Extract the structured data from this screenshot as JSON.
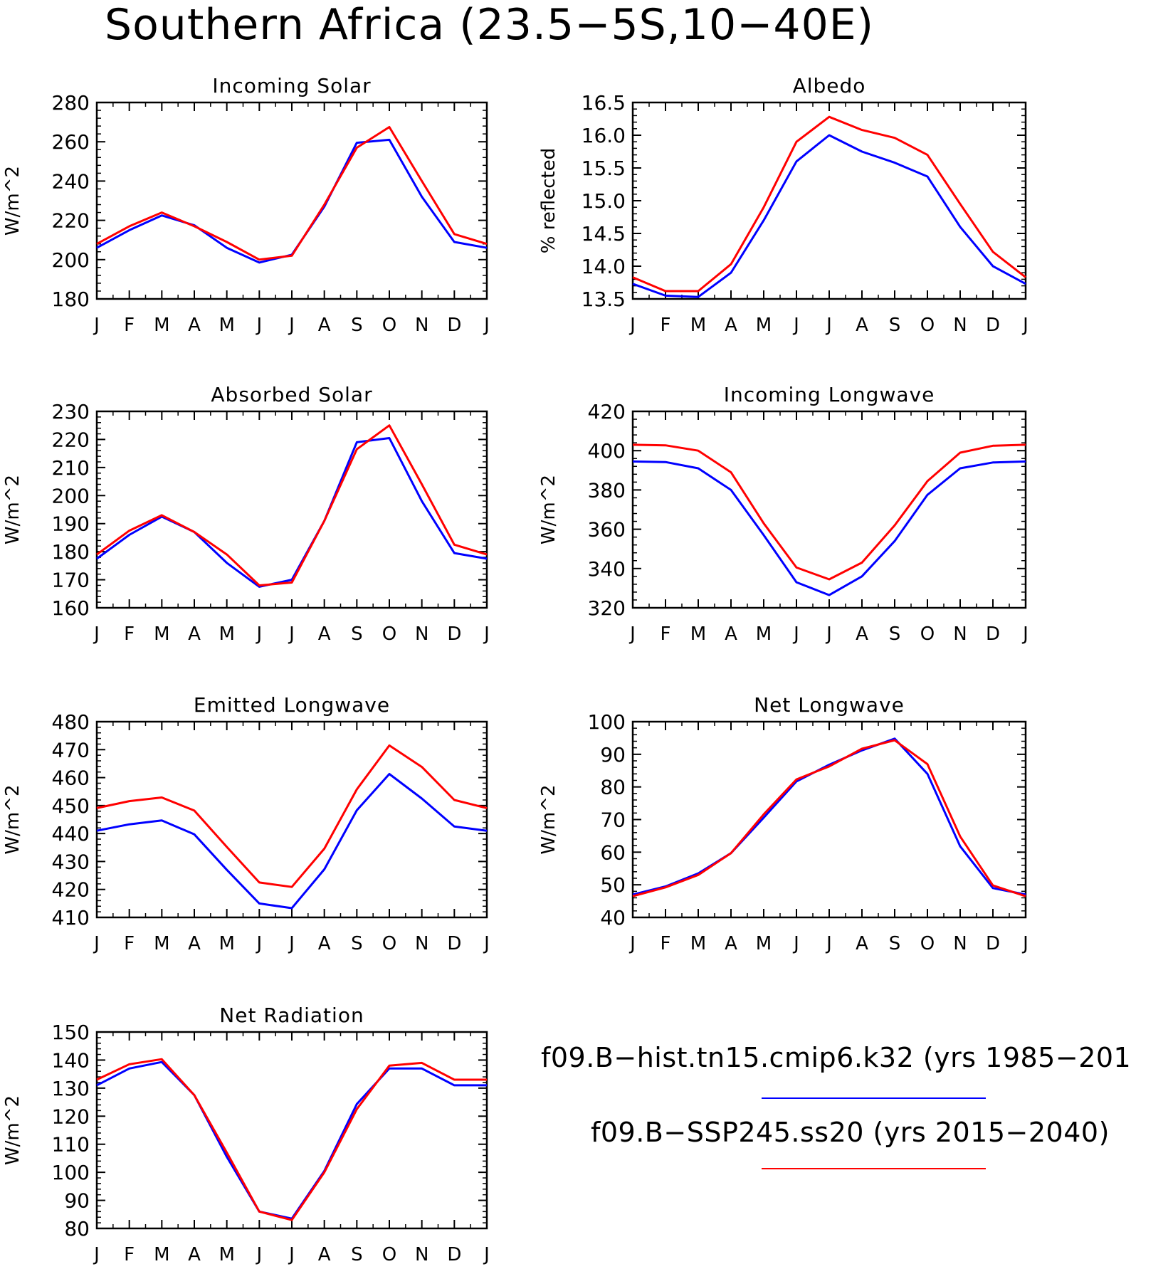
{
  "page": {
    "title": "Southern Africa (23.5−5S,10−40E)"
  },
  "legend": [
    {
      "label": "f09.B−hist.tn15.cmip6.k32 (yrs 1985−201",
      "color": "#0000ff"
    },
    {
      "label": "f09.B−SSP245.ss20 (yrs 2015−2040)",
      "color": "#ff0000"
    }
  ],
  "colors": {
    "hist": "#0000ff",
    "ssp": "#ff0000"
  },
  "chart_data": [
    {
      "type": "line",
      "title": "Incoming Solar",
      "ylabel": "W/m^2",
      "categories": [
        "J",
        "F",
        "M",
        "A",
        "M",
        "J",
        "J",
        "A",
        "S",
        "O",
        "N",
        "D",
        "J"
      ],
      "ylim": [
        180,
        280
      ],
      "yticks": [
        "180",
        "200",
        "220",
        "240",
        "260",
        "280"
      ],
      "series": [
        {
          "values": [
            206,
            215,
            222.5,
            217.5,
            206,
            198.5,
            202.5,
            227,
            259.5,
            261,
            232,
            209,
            206
          ]
        },
        {
          "values": [
            208,
            217,
            224,
            217,
            209,
            200,
            202,
            228,
            257,
            267.5,
            240,
            213,
            208
          ]
        }
      ]
    },
    {
      "type": "line",
      "title": "Albedo",
      "ylabel": "% reflected",
      "categories": [
        "J",
        "F",
        "M",
        "A",
        "M",
        "J",
        "J",
        "A",
        "S",
        "O",
        "N",
        "D",
        "J"
      ],
      "ylim": [
        13.5,
        16.5
      ],
      "yticks": [
        "13.5",
        "14.0",
        "14.5",
        "15.0",
        "15.5",
        "16.0",
        "16.5"
      ],
      "series": [
        {
          "values": [
            13.73,
            13.55,
            13.53,
            13.9,
            14.7,
            15.6,
            16.0,
            15.75,
            15.58,
            15.37,
            14.6,
            14.0,
            13.73
          ]
        },
        {
          "values": [
            13.83,
            13.62,
            13.62,
            14.03,
            14.9,
            15.9,
            16.28,
            16.08,
            15.96,
            15.7,
            14.95,
            14.22,
            13.83
          ]
        }
      ]
    },
    {
      "type": "line",
      "title": "Absorbed Solar",
      "ylabel": "W/m^2",
      "categories": [
        "J",
        "F",
        "M",
        "A",
        "M",
        "J",
        "J",
        "A",
        "S",
        "O",
        "N",
        "D",
        "J"
      ],
      "ylim": [
        160,
        230
      ],
      "yticks": [
        "160",
        "170",
        "180",
        "190",
        "200",
        "210",
        "220",
        "230"
      ],
      "series": [
        {
          "values": [
            177.5,
            186,
            192.5,
            187,
            176,
            167.5,
            170,
            191,
            219,
            220.5,
            198,
            179.5,
            177.5
          ]
        },
        {
          "values": [
            179,
            187.5,
            193,
            187,
            179,
            168,
            169,
            191,
            216.5,
            225,
            204,
            182.5,
            179
          ]
        }
      ]
    },
    {
      "type": "line",
      "title": "Incoming Longwave",
      "ylabel": "W/m^2",
      "categories": [
        "J",
        "F",
        "M",
        "A",
        "M",
        "J",
        "J",
        "A",
        "S",
        "O",
        "N",
        "D",
        "J"
      ],
      "ylim": [
        320,
        420
      ],
      "yticks": [
        "320",
        "340",
        "360",
        "380",
        "400",
        "420"
      ],
      "series": [
        {
          "values": [
            394.5,
            394.2,
            391,
            380,
            357,
            333,
            326.5,
            336,
            354,
            377.5,
            391,
            394,
            394.5
          ]
        },
        {
          "values": [
            403,
            402.7,
            400,
            389,
            363,
            340.5,
            334.5,
            343,
            362,
            384.5,
            399,
            402.5,
            403
          ]
        }
      ]
    },
    {
      "type": "line",
      "title": "Emitted Longwave",
      "ylabel": "W/m^2",
      "categories": [
        "J",
        "F",
        "M",
        "A",
        "M",
        "J",
        "J",
        "A",
        "S",
        "O",
        "N",
        "D",
        "J"
      ],
      "ylim": [
        410,
        480
      ],
      "yticks": [
        "410",
        "420",
        "430",
        "440",
        "450",
        "460",
        "470",
        "480"
      ],
      "series": [
        {
          "values": [
            441,
            443.3,
            444.7,
            439.7,
            427,
            415,
            413.3,
            427.2,
            448.3,
            461.3,
            452.5,
            442.5,
            441
          ]
        },
        {
          "values": [
            449.1,
            451.6,
            452.9,
            448.2,
            435.2,
            422.5,
            420.9,
            434.6,
            455.8,
            471.5,
            463.8,
            452,
            449.1
          ]
        }
      ]
    },
    {
      "type": "line",
      "title": "Net Longwave",
      "ylabel": "W/m^2",
      "categories": [
        "J",
        "F",
        "M",
        "A",
        "M",
        "J",
        "J",
        "A",
        "S",
        "O",
        "N",
        "D",
        "J"
      ],
      "ylim": [
        40,
        100
      ],
      "yticks": [
        "40",
        "50",
        "60",
        "70",
        "80",
        "90",
        "100"
      ],
      "series": [
        {
          "values": [
            47,
            49.5,
            53.5,
            59.7,
            70.6,
            81.7,
            86.8,
            91.2,
            94.8,
            84,
            61.8,
            49,
            47
          ]
        },
        {
          "values": [
            46.5,
            49.2,
            53,
            59.7,
            71.6,
            82.3,
            86.3,
            91.7,
            94.3,
            87,
            64.8,
            49.8,
            46.5
          ]
        }
      ]
    },
    {
      "type": "line",
      "title": "Net Radiation",
      "ylabel": "W/m^2",
      "categories": [
        "J",
        "F",
        "M",
        "A",
        "M",
        "J",
        "J",
        "A",
        "S",
        "O",
        "N",
        "D",
        "J"
      ],
      "ylim": [
        80,
        150
      ],
      "yticks": [
        "80",
        "90",
        "100",
        "110",
        "120",
        "130",
        "140",
        "150"
      ],
      "series": [
        {
          "values": [
            131,
            137,
            139.3,
            127.5,
            105.5,
            86,
            83.5,
            100.5,
            124.3,
            137,
            137,
            131,
            131
          ]
        },
        {
          "values": [
            133,
            138.5,
            140.3,
            127.5,
            107,
            86,
            83,
            100,
            122.5,
            138,
            139,
            133,
            133
          ]
        }
      ]
    }
  ]
}
